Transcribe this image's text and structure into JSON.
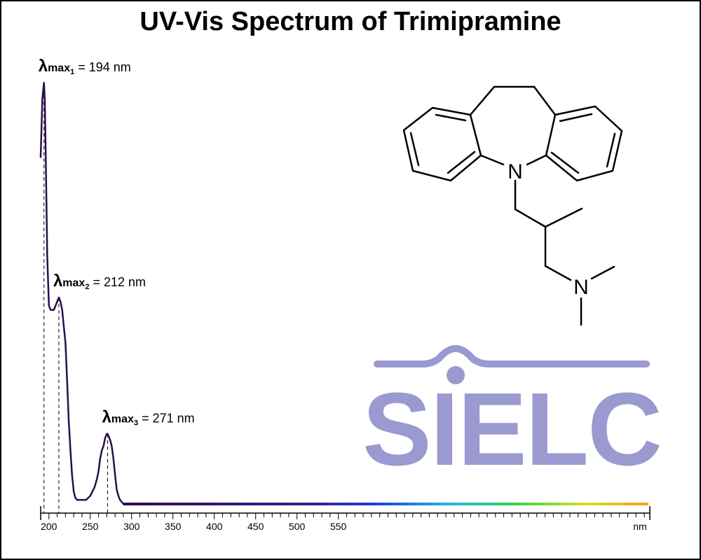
{
  "chart_data": {
    "type": "line",
    "title": "UV-Vis Spectrum of Trimipramine",
    "xunit": "nm",
    "xlim": [
      190,
      925
    ],
    "ylim": [
      0,
      1
    ],
    "x_ticks": [
      200,
      250,
      300,
      350,
      400,
      450,
      500,
      550
    ],
    "grid": false,
    "series": [
      {
        "x": [
          190,
          192,
          193,
          194,
          195,
          196,
          198,
          200,
          202,
          204,
          206,
          208,
          210,
          212,
          214,
          216,
          218,
          220,
          222,
          224,
          226,
          228,
          230,
          232,
          234,
          236,
          238,
          240,
          245,
          250,
          255,
          258,
          260,
          262,
          264,
          266,
          268,
          270,
          271,
          272,
          274,
          276,
          278,
          280,
          282,
          284,
          286,
          288,
          290,
          295,
          300,
          350,
          400,
          450,
          500,
          550,
          600,
          650,
          700,
          750,
          800,
          850,
          900,
          925
        ],
        "y": [
          0.84,
          0.98,
          1.0,
          1.02,
          0.98,
          0.86,
          0.6,
          0.48,
          0.47,
          0.47,
          0.47,
          0.48,
          0.49,
          0.5,
          0.49,
          0.47,
          0.43,
          0.39,
          0.3,
          0.2,
          0.13,
          0.07,
          0.03,
          0.015,
          0.01,
          0.01,
          0.01,
          0.01,
          0.01,
          0.02,
          0.04,
          0.06,
          0.08,
          0.11,
          0.13,
          0.14,
          0.16,
          0.17,
          0.17,
          0.165,
          0.155,
          0.14,
          0.11,
          0.07,
          0.035,
          0.02,
          0.01,
          0.005,
          0.0,
          0.0,
          0.0,
          0.0,
          0.0,
          0.0,
          0.0,
          0.0,
          0.0,
          0.0,
          0.0,
          0.0,
          0.0,
          0.0,
          0.0,
          0.0
        ]
      }
    ],
    "annotations": [
      {
        "symbol": "λ",
        "sub": "max",
        "index": "1",
        "text": "= 194 nm",
        "x": 194
      },
      {
        "symbol": "λ",
        "sub": "max",
        "index": "2",
        "text": "= 212 nm",
        "x": 212
      },
      {
        "symbol": "λ",
        "sub": "max",
        "index": "3",
        "text": "= 271 nm",
        "x": 271
      }
    ],
    "colors": {
      "line": "#2a0f4e",
      "baseline_gradient": [
        "#2a0f4e",
        "#3b1d8f",
        "#1c3fd6",
        "#1fb5e8",
        "#2fd14a",
        "#d8df27",
        "#f3a21a"
      ],
      "watermark": "#9a9ad0"
    }
  },
  "molecule": {
    "atom_labels": [
      "N",
      "N"
    ]
  },
  "watermark": {
    "text": "SIELC"
  }
}
